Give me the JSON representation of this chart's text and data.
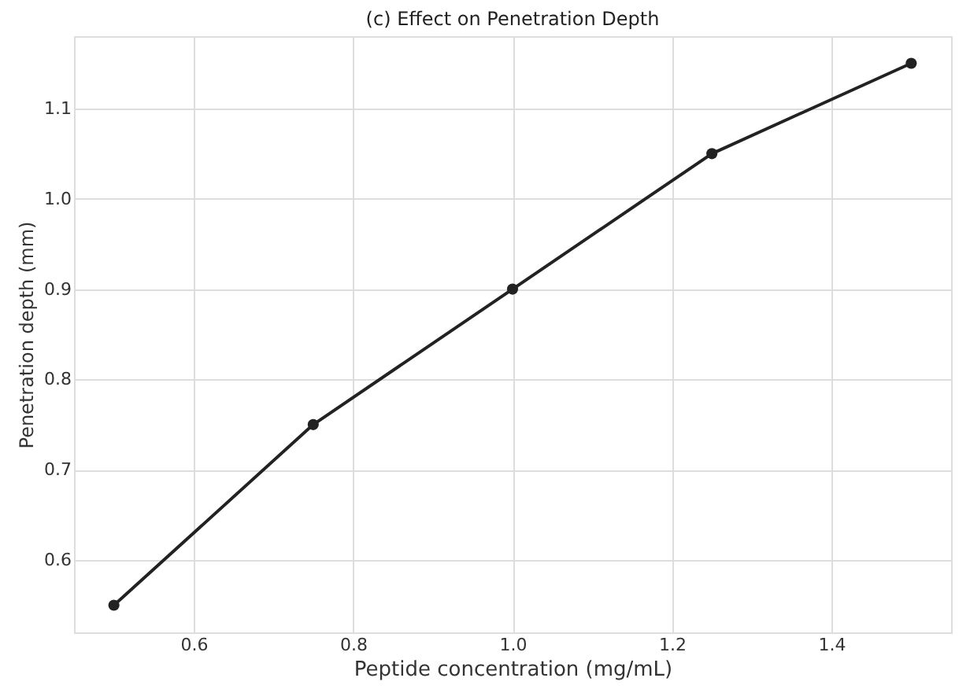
{
  "chart_data": {
    "type": "line",
    "title": "(c) Effect on Penetration Depth",
    "xlabel": "Peptide concentration (mg/mL)",
    "ylabel": "Penetration depth (mm)",
    "x": [
      0.5,
      0.75,
      1.0,
      1.25,
      1.5
    ],
    "series": [
      {
        "color": "#222222",
        "values": [
          0.55,
          0.75,
          0.9,
          1.05,
          1.15
        ]
      }
    ],
    "xlim": [
      0.45,
      1.55
    ],
    "xticks": [
      {
        "value": 0.6,
        "label": "0.6"
      },
      {
        "value": 0.8,
        "label": "0.8"
      },
      {
        "value": 1.0,
        "label": "1.0"
      },
      {
        "value": 1.2,
        "label": "1.2"
      },
      {
        "value": 1.4,
        "label": "1.4"
      }
    ],
    "ylim": [
      0.52,
      1.18
    ],
    "yticks": [
      {
        "value": 0.6,
        "label": "0.6"
      },
      {
        "value": 0.7,
        "label": "0.7"
      },
      {
        "value": 0.8,
        "label": "0.8"
      },
      {
        "value": 0.9,
        "label": "0.9"
      },
      {
        "value": 1.0,
        "label": "1.0"
      },
      {
        "value": 1.1,
        "label": "1.1"
      }
    ],
    "grid": true,
    "marker": "circle",
    "line_style": "solid"
  }
}
